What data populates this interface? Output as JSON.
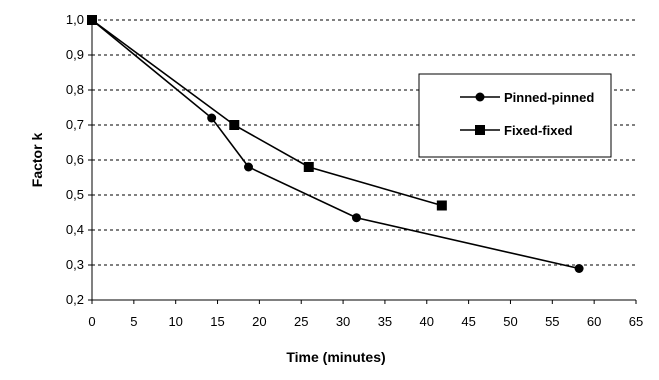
{
  "chart_data": {
    "type": "line",
    "xlabel": "Time (minutes)",
    "ylabel": "Factor k",
    "xlim": [
      0,
      65
    ],
    "ylim": [
      0.2,
      1.0
    ],
    "x_ticks": [
      0,
      5,
      10,
      15,
      20,
      25,
      30,
      35,
      40,
      45,
      50,
      55,
      60,
      65
    ],
    "y_ticks": [
      0.2,
      0.3,
      0.4,
      0.5,
      0.6,
      0.7,
      0.8,
      0.9,
      1.0
    ],
    "x_tick_labels": [
      "0",
      "5",
      "10",
      "15",
      "20",
      "25",
      "30",
      "35",
      "40",
      "45",
      "50",
      "55",
      "60",
      "65"
    ],
    "y_tick_labels": [
      "0,2",
      "0,3",
      "0,4",
      "0,5",
      "0,6",
      "0,7",
      "0,8",
      "0,9",
      "1,0"
    ],
    "grid": "horizontal-dashed",
    "legend_position": "right",
    "series": [
      {
        "name": "Pinned-pinned",
        "marker": "circle",
        "points": [
          {
            "x": 0,
            "y": 1.0
          },
          {
            "x": 14.3,
            "y": 0.72
          },
          {
            "x": 18.7,
            "y": 0.58
          },
          {
            "x": 31.6,
            "y": 0.435
          },
          {
            "x": 58.2,
            "y": 0.29
          }
        ]
      },
      {
        "name": "Fixed-fixed",
        "marker": "square",
        "points": [
          {
            "x": 0,
            "y": 1.0
          },
          {
            "x": 17.0,
            "y": 0.7
          },
          {
            "x": 25.9,
            "y": 0.58
          },
          {
            "x": 41.8,
            "y": 0.47
          }
        ]
      }
    ]
  }
}
